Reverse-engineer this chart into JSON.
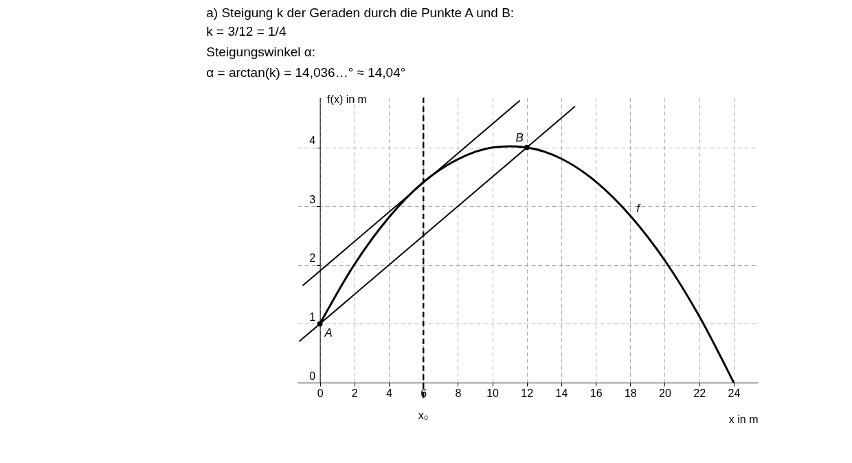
{
  "chart_data": {
    "type": "line",
    "title": "a) Steigung k der Geraden durch die Punkte A und B:",
    "subtitle": [
      "k = 3/12 = 1/4",
      "Steigungswinkel α:",
      "α = arctan(k) = 14,036…° ≈ 14,04°"
    ],
    "xlabel": "x in m",
    "ylabel": "f(x) in m",
    "xlim": [
      -1.3,
      25.4
    ],
    "ylim": [
      0,
      4.85
    ],
    "xticks": [
      0,
      2,
      4,
      6,
      8,
      10,
      12,
      14,
      16,
      18,
      20,
      22,
      24
    ],
    "yticks": [
      0,
      1,
      2,
      3,
      4
    ],
    "grid": true,
    "series": [
      {
        "color": "#000000",
        "x": [
          0,
          2,
          4,
          6,
          8,
          10,
          11,
          12,
          14,
          16,
          18,
          20,
          22,
          24
        ],
        "values": [
          1,
          2.01,
          2.81,
          3.41,
          3.8,
          4.0,
          4.02,
          4.0,
          3.81,
          3.42,
          2.84,
          2.08,
          1.13,
          0
        ]
      },
      {
        "type": "line",
        "color": "#000000",
        "x": [
          -1.2,
          14.8
        ],
        "values": [
          0.7,
          4.7
        ]
      },
      {
        "type": "line",
        "color": "#000000",
        "x": [
          -1,
          11.6
        ],
        "values": [
          1.65,
          4.8
        ]
      },
      {
        "type": "scatter",
        "color": "#000000",
        "marker": "circle",
        "x": [
          0,
          12
        ],
        "values": [
          1,
          4
        ]
      }
    ],
    "ref_lines": [
      {
        "axis": "x",
        "value": 6,
        "label": "x₀",
        "line_style": "dashed",
        "color": "#000000"
      }
    ],
    "annotations": [
      {
        "text": "A",
        "x": 0,
        "y": 1
      },
      {
        "text": "B",
        "x": 12,
        "y": 4
      },
      {
        "text": "f",
        "x": 18,
        "y": 2.84
      }
    ]
  }
}
